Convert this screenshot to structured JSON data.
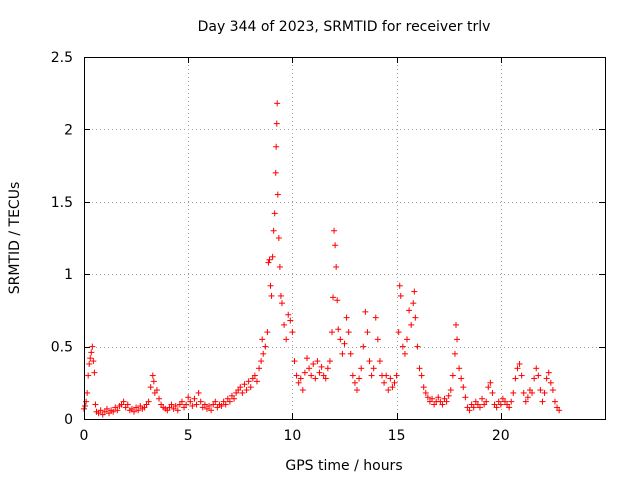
{
  "chart_data": {
    "type": "scatter",
    "title": "Day 344 of 2023, SRMTID for receiver trlv",
    "xlabel": "GPS time / hours",
    "ylabel": "SRMTID / TECUs",
    "xlim": [
      0,
      25
    ],
    "ylim": [
      0,
      2.5
    ],
    "xticks": [
      0,
      5,
      10,
      15,
      20
    ],
    "xtick_labels": [
      "0",
      "5",
      "10",
      "15",
      "20"
    ],
    "yticks": [
      0,
      0.5,
      1,
      1.5,
      2,
      2.5
    ],
    "ytick_labels": [
      "0",
      "0.5",
      "1",
      "1.5",
      "2",
      "2.5"
    ],
    "grid": true,
    "marker": "+",
    "color": "#ff0000",
    "series": [
      {
        "name": "SRMTID",
        "points": [
          [
            0.0,
            0.07
          ],
          [
            0.05,
            0.09
          ],
          [
            0.1,
            0.12
          ],
          [
            0.15,
            0.18
          ],
          [
            0.2,
            0.3
          ],
          [
            0.25,
            0.38
          ],
          [
            0.3,
            0.42
          ],
          [
            0.35,
            0.46
          ],
          [
            0.4,
            0.5
          ],
          [
            0.45,
            0.4
          ],
          [
            0.5,
            0.32
          ],
          [
            0.55,
            0.1
          ],
          [
            0.6,
            0.05
          ],
          [
            0.7,
            0.04
          ],
          [
            0.8,
            0.06
          ],
          [
            0.9,
            0.03
          ],
          [
            1.0,
            0.05
          ],
          [
            1.1,
            0.07
          ],
          [
            1.2,
            0.04
          ],
          [
            1.3,
            0.06
          ],
          [
            1.4,
            0.05
          ],
          [
            1.5,
            0.08
          ],
          [
            1.6,
            0.06
          ],
          [
            1.7,
            0.09
          ],
          [
            1.8,
            0.1
          ],
          [
            1.9,
            0.12
          ],
          [
            2.0,
            0.08
          ],
          [
            2.1,
            0.1
          ],
          [
            2.2,
            0.06
          ],
          [
            2.3,
            0.07
          ],
          [
            2.4,
            0.05
          ],
          [
            2.5,
            0.08
          ],
          [
            2.6,
            0.06
          ],
          [
            2.7,
            0.09
          ],
          [
            2.8,
            0.07
          ],
          [
            2.9,
            0.08
          ],
          [
            3.0,
            0.1
          ],
          [
            3.1,
            0.12
          ],
          [
            3.2,
            0.22
          ],
          [
            3.3,
            0.3
          ],
          [
            3.35,
            0.26
          ],
          [
            3.4,
            0.18
          ],
          [
            3.5,
            0.2
          ],
          [
            3.6,
            0.14
          ],
          [
            3.7,
            0.1
          ],
          [
            3.8,
            0.08
          ],
          [
            3.9,
            0.07
          ],
          [
            4.0,
            0.06
          ],
          [
            4.1,
            0.08
          ],
          [
            4.2,
            0.1
          ],
          [
            4.3,
            0.07
          ],
          [
            4.4,
            0.09
          ],
          [
            4.5,
            0.06
          ],
          [
            4.6,
            0.1
          ],
          [
            4.7,
            0.12
          ],
          [
            4.8,
            0.08
          ],
          [
            4.9,
            0.1
          ],
          [
            5.0,
            0.15
          ],
          [
            5.1,
            0.12
          ],
          [
            5.2,
            0.09
          ],
          [
            5.3,
            0.14
          ],
          [
            5.4,
            0.1
          ],
          [
            5.5,
            0.18
          ],
          [
            5.6,
            0.12
          ],
          [
            5.7,
            0.08
          ],
          [
            5.8,
            0.1
          ],
          [
            5.9,
            0.07
          ],
          [
            6.0,
            0.09
          ],
          [
            6.1,
            0.06
          ],
          [
            6.2,
            0.1
          ],
          [
            6.3,
            0.12
          ],
          [
            6.4,
            0.08
          ],
          [
            6.5,
            0.1
          ],
          [
            6.6,
            0.09
          ],
          [
            6.7,
            0.12
          ],
          [
            6.8,
            0.1
          ],
          [
            6.9,
            0.14
          ],
          [
            7.0,
            0.12
          ],
          [
            7.1,
            0.16
          ],
          [
            7.2,
            0.14
          ],
          [
            7.3,
            0.18
          ],
          [
            7.4,
            0.2
          ],
          [
            7.5,
            0.22
          ],
          [
            7.6,
            0.18
          ],
          [
            7.7,
            0.24
          ],
          [
            7.8,
            0.2
          ],
          [
            7.9,
            0.26
          ],
          [
            8.0,
            0.22
          ],
          [
            8.1,
            0.28
          ],
          [
            8.2,
            0.3
          ],
          [
            8.3,
            0.26
          ],
          [
            8.4,
            0.35
          ],
          [
            8.5,
            0.4
          ],
          [
            8.55,
            0.55
          ],
          [
            8.6,
            0.45
          ],
          [
            8.7,
            0.5
          ],
          [
            8.8,
            0.6
          ],
          [
            8.85,
            1.08
          ],
          [
            8.9,
            1.1
          ],
          [
            8.95,
            0.92
          ],
          [
            9.0,
            0.85
          ],
          [
            9.05,
            1.12
          ],
          [
            9.1,
            1.3
          ],
          [
            9.15,
            1.42
          ],
          [
            9.2,
            1.7
          ],
          [
            9.22,
            1.88
          ],
          [
            9.25,
            2.04
          ],
          [
            9.27,
            2.18
          ],
          [
            9.3,
            1.55
          ],
          [
            9.35,
            1.25
          ],
          [
            9.4,
            1.05
          ],
          [
            9.45,
            0.85
          ],
          [
            9.5,
            0.8
          ],
          [
            9.6,
            0.65
          ],
          [
            9.7,
            0.55
          ],
          [
            9.8,
            0.72
          ],
          [
            9.9,
            0.68
          ],
          [
            10.0,
            0.6
          ],
          [
            10.1,
            0.4
          ],
          [
            10.2,
            0.3
          ],
          [
            10.3,
            0.25
          ],
          [
            10.4,
            0.28
          ],
          [
            10.5,
            0.2
          ],
          [
            10.6,
            0.32
          ],
          [
            10.7,
            0.42
          ],
          [
            10.8,
            0.35
          ],
          [
            10.9,
            0.3
          ],
          [
            11.0,
            0.38
          ],
          [
            11.1,
            0.28
          ],
          [
            11.2,
            0.4
          ],
          [
            11.3,
            0.32
          ],
          [
            11.4,
            0.36
          ],
          [
            11.5,
            0.3
          ],
          [
            11.6,
            0.28
          ],
          [
            11.7,
            0.35
          ],
          [
            11.8,
            0.4
          ],
          [
            11.9,
            0.6
          ],
          [
            11.95,
            0.84
          ],
          [
            12.0,
            1.3
          ],
          [
            12.05,
            1.2
          ],
          [
            12.1,
            1.05
          ],
          [
            12.15,
            0.82
          ],
          [
            12.2,
            0.62
          ],
          [
            12.3,
            0.55
          ],
          [
            12.4,
            0.45
          ],
          [
            12.5,
            0.52
          ],
          [
            12.6,
            0.7
          ],
          [
            12.7,
            0.6
          ],
          [
            12.8,
            0.45
          ],
          [
            12.9,
            0.3
          ],
          [
            13.0,
            0.25
          ],
          [
            13.1,
            0.2
          ],
          [
            13.2,
            0.28
          ],
          [
            13.3,
            0.35
          ],
          [
            13.4,
            0.5
          ],
          [
            13.5,
            0.74
          ],
          [
            13.6,
            0.6
          ],
          [
            13.7,
            0.4
          ],
          [
            13.8,
            0.3
          ],
          [
            13.9,
            0.35
          ],
          [
            14.0,
            0.7
          ],
          [
            14.1,
            0.55
          ],
          [
            14.2,
            0.4
          ],
          [
            14.3,
            0.3
          ],
          [
            14.4,
            0.25
          ],
          [
            14.5,
            0.3
          ],
          [
            14.6,
            0.2
          ],
          [
            14.7,
            0.28
          ],
          [
            14.8,
            0.22
          ],
          [
            14.9,
            0.25
          ],
          [
            15.0,
            0.3
          ],
          [
            15.1,
            0.6
          ],
          [
            15.15,
            0.92
          ],
          [
            15.2,
            0.85
          ],
          [
            15.3,
            0.5
          ],
          [
            15.4,
            0.45
          ],
          [
            15.5,
            0.55
          ],
          [
            15.6,
            0.75
          ],
          [
            15.7,
            0.65
          ],
          [
            15.8,
            0.8
          ],
          [
            15.85,
            0.88
          ],
          [
            15.9,
            0.7
          ],
          [
            16.0,
            0.5
          ],
          [
            16.1,
            0.35
          ],
          [
            16.2,
            0.3
          ],
          [
            16.3,
            0.22
          ],
          [
            16.4,
            0.18
          ],
          [
            16.5,
            0.15
          ],
          [
            16.6,
            0.12
          ],
          [
            16.7,
            0.14
          ],
          [
            16.8,
            0.1
          ],
          [
            16.9,
            0.12
          ],
          [
            17.0,
            0.15
          ],
          [
            17.1,
            0.12
          ],
          [
            17.2,
            0.1
          ],
          [
            17.3,
            0.14
          ],
          [
            17.4,
            0.12
          ],
          [
            17.5,
            0.16
          ],
          [
            17.6,
            0.2
          ],
          [
            17.7,
            0.3
          ],
          [
            17.8,
            0.45
          ],
          [
            17.85,
            0.65
          ],
          [
            17.9,
            0.55
          ],
          [
            18.0,
            0.35
          ],
          [
            18.1,
            0.28
          ],
          [
            18.2,
            0.22
          ],
          [
            18.3,
            0.15
          ],
          [
            18.4,
            0.08
          ],
          [
            18.5,
            0.06
          ],
          [
            18.6,
            0.1
          ],
          [
            18.7,
            0.08
          ],
          [
            18.8,
            0.12
          ],
          [
            18.9,
            0.1
          ],
          [
            19.0,
            0.08
          ],
          [
            19.1,
            0.14
          ],
          [
            19.2,
            0.1
          ],
          [
            19.3,
            0.12
          ],
          [
            19.4,
            0.22
          ],
          [
            19.5,
            0.25
          ],
          [
            19.6,
            0.18
          ],
          [
            19.7,
            0.1
          ],
          [
            19.8,
            0.08
          ],
          [
            19.9,
            0.12
          ],
          [
            20.0,
            0.1
          ],
          [
            20.1,
            0.14
          ],
          [
            20.2,
            0.12
          ],
          [
            20.3,
            0.1
          ],
          [
            20.4,
            0.08
          ],
          [
            20.5,
            0.12
          ],
          [
            20.6,
            0.18
          ],
          [
            20.7,
            0.28
          ],
          [
            20.8,
            0.35
          ],
          [
            20.9,
            0.38
          ],
          [
            21.0,
            0.3
          ],
          [
            21.1,
            0.18
          ],
          [
            21.2,
            0.12
          ],
          [
            21.3,
            0.15
          ],
          [
            21.4,
            0.2
          ],
          [
            21.5,
            0.18
          ],
          [
            21.6,
            0.28
          ],
          [
            21.7,
            0.35
          ],
          [
            21.8,
            0.3
          ],
          [
            21.9,
            0.2
          ],
          [
            22.0,
            0.12
          ],
          [
            22.1,
            0.18
          ],
          [
            22.2,
            0.28
          ],
          [
            22.3,
            0.32
          ],
          [
            22.4,
            0.25
          ],
          [
            22.5,
            0.2
          ],
          [
            22.6,
            0.12
          ],
          [
            22.7,
            0.08
          ],
          [
            22.8,
            0.06
          ]
        ]
      }
    ]
  }
}
